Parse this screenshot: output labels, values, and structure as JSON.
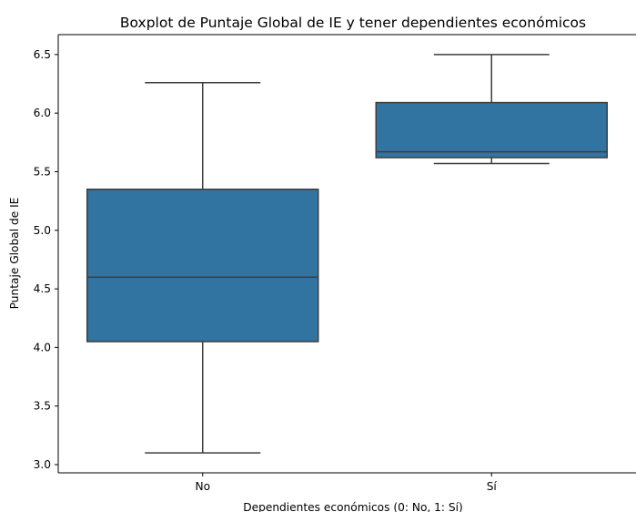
{
  "chart_data": {
    "type": "boxplot",
    "title": "Boxplot de Puntaje Global de IE y tener dependientes económicos",
    "xlabel": "Dependientes económicos (0: No, 1: Sí)",
    "ylabel": "Puntaje Global de IE",
    "categories": [
      "No",
      "Sí"
    ],
    "boxes": [
      {
        "category": "No",
        "whisker_low": 3.1,
        "q1": 4.05,
        "median": 4.6,
        "q3": 5.35,
        "whisker_high": 6.26
      },
      {
        "category": "Sí",
        "whisker_low": 5.57,
        "q1": 5.62,
        "median": 5.67,
        "q3": 6.09,
        "whisker_high": 6.5
      }
    ],
    "ylim": [
      2.93,
      6.67
    ],
    "yticks": [
      3.0,
      3.5,
      4.0,
      4.5,
      5.0,
      5.5,
      6.0,
      6.5
    ],
    "ytick_labels": [
      "3.0",
      "3.5",
      "4.0",
      "4.5",
      "5.0",
      "5.5",
      "6.0",
      "6.5"
    ],
    "box_color": "#3274a1",
    "line_color": "#3d3d3d",
    "grid": false,
    "legend": "none"
  }
}
